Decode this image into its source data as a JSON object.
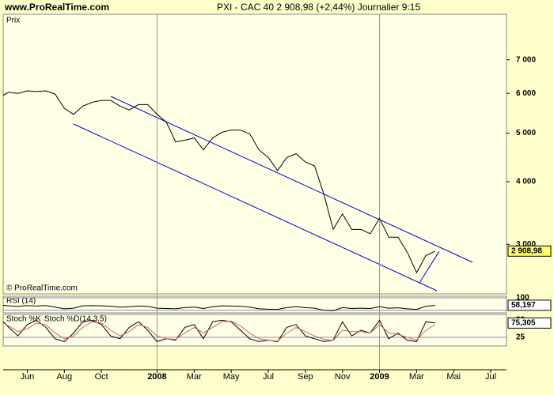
{
  "chart_data": [
    {
      "type": "line",
      "title": "PXI - CAC 40   2 908,98 (+2,44%)   Journalier  9:15",
      "site": "www.ProRealTime.com",
      "panel_label": "Prix",
      "copyright": "© ProRealTime.com",
      "current_label": "2 908,98",
      "log_scale": true,
      "x": [
        -1.3,
        -1,
        -0.5,
        0,
        0.5,
        1,
        1.5,
        2,
        2.5,
        3,
        3.5,
        4,
        4.5,
        5,
        5.5,
        6,
        6.5,
        7,
        7.5,
        8,
        8.5,
        9,
        9.5,
        10,
        10.5,
        11,
        11.5,
        12,
        12.5,
        13,
        13.5,
        14,
        14.5,
        15,
        15.5,
        16,
        16.5,
        17,
        17.5,
        18,
        18.5,
        19,
        19.5,
        20,
        20.5,
        21,
        21.5,
        22
      ],
      "xlim": [
        -1.3,
        25.85
      ],
      "xticks": [
        {
          "value": 0,
          "label": "Jun"
        },
        {
          "value": 2,
          "label": "Aug"
        },
        {
          "value": 4,
          "label": "Oct"
        },
        {
          "value": 7,
          "label": "2008"
        },
        {
          "value": 9,
          "label": "Mar"
        },
        {
          "value": 11,
          "label": "May"
        },
        {
          "value": 13,
          "label": "Jul"
        },
        {
          "value": 15,
          "label": "Sep"
        },
        {
          "value": 17,
          "label": "Nov"
        },
        {
          "value": 19,
          "label": "2009"
        },
        {
          "value": 21,
          "label": "Mar"
        },
        {
          "value": 23,
          "label": "Mai"
        },
        {
          "value": 25,
          "label": "Jul"
        }
      ],
      "ylim": [
        2390,
        8630
      ],
      "yticks": [
        {
          "value": 3000,
          "label": "3 000"
        },
        {
          "value": 4000,
          "label": "4 000"
        },
        {
          "value": 5000,
          "label": "5 000"
        },
        {
          "value": 6000,
          "label": "6 000"
        },
        {
          "value": 7000,
          "label": "7 000"
        }
      ],
      "series": [
        {
          "color": "#000000",
          "values": [
            5950,
            6030,
            6000,
            6070,
            6050,
            6070,
            5980,
            5600,
            5450,
            5660,
            5760,
            5810,
            5810,
            5660,
            5560,
            5700,
            5700,
            5450,
            5260,
            4805,
            4840,
            4890,
            4630,
            4890,
            5020,
            5070,
            5070,
            4980,
            4630,
            4470,
            4210,
            4470,
            4550,
            4380,
            4300,
            3775,
            3213,
            3450,
            3213,
            3213,
            3150,
            3380,
            3100,
            3100,
            2890,
            2635,
            2850,
            2908.98
          ]
        }
      ]
    },
    {
      "type": "line",
      "title": "RSI (14)",
      "current_label": "58,197",
      "ylim": [
        20,
        100
      ],
      "yticks": [
        30,
        100
      ],
      "series": [
        {
          "color": "#000000",
          "values": [
            58,
            55,
            52,
            56,
            54,
            57,
            48,
            38,
            42,
            55,
            56,
            55,
            53,
            47,
            50,
            54,
            52,
            42,
            40,
            38,
            45,
            48,
            40,
            50,
            55,
            54,
            52,
            48,
            38,
            36,
            35,
            45,
            50,
            45,
            42,
            30,
            28,
            45,
            40,
            42,
            40,
            50,
            42,
            44,
            38,
            35,
            52,
            58.197
          ]
        }
      ]
    },
    {
      "type": "line",
      "current_label": "75,305",
      "ylim": [
        0,
        100
      ],
      "yticks": [
        25
      ],
      "series": [
        {
          "name": "Stoch %K",
          "color": "#000000",
          "values": [
            80,
            60,
            30,
            70,
            85,
            60,
            20,
            10,
            40,
            80,
            85,
            70,
            30,
            20,
            60,
            80,
            50,
            10,
            20,
            15,
            60,
            70,
            20,
            80,
            85,
            80,
            50,
            20,
            10,
            15,
            10,
            60,
            70,
            30,
            20,
            10,
            15,
            80,
            30,
            50,
            40,
            85,
            20,
            40,
            15,
            10,
            80,
            75.305
          ]
        },
        {
          "name": "Stoch %D(14,3,5)",
          "color": "#cc6666",
          "values": [
            75,
            65,
            45,
            55,
            75,
            70,
            40,
            20,
            30,
            60,
            80,
            75,
            50,
            30,
            45,
            70,
            60,
            30,
            20,
            18,
            40,
            60,
            40,
            60,
            80,
            82,
            65,
            40,
            20,
            15,
            12,
            40,
            60,
            45,
            30,
            18,
            14,
            50,
            45,
            45,
            40,
            70,
            40,
            35,
            25,
            15,
            50,
            70
          ]
        }
      ]
    }
  ]
}
